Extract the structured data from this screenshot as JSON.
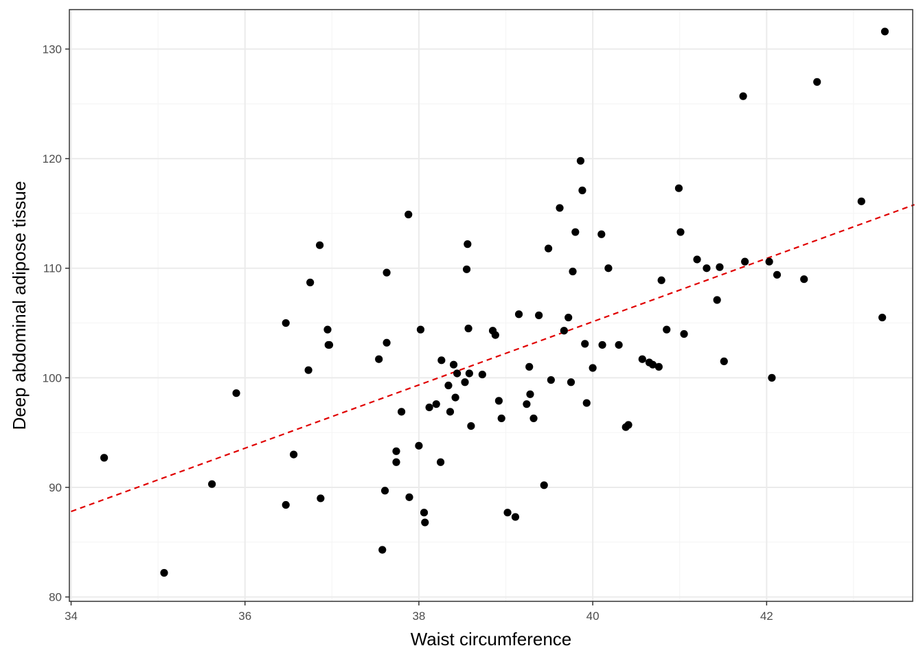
{
  "chart_data": {
    "type": "scatter",
    "xlabel": "Waist circumference",
    "ylabel": "Deep abdominal adipose tissue",
    "xlim": [
      33.98,
      43.68
    ],
    "ylim": [
      79.6,
      133.6
    ],
    "x_ticks": [
      "34",
      "36",
      "38",
      "40",
      "42"
    ],
    "y_ticks": [
      "80",
      "90",
      "100",
      "110",
      "120",
      "130"
    ],
    "grid": true,
    "point_color": "#000000",
    "trend_line": {
      "x": [
        34.0,
        43.7
      ],
      "y": [
        87.8,
        115.8
      ],
      "color": "#e00000",
      "style": "dashed"
    },
    "points": [
      [
        34.38,
        92.7
      ],
      [
        35.07,
        82.2
      ],
      [
        35.62,
        90.3
      ],
      [
        35.9,
        98.6
      ],
      [
        36.47,
        105.0
      ],
      [
        36.47,
        88.4
      ],
      [
        36.56,
        93.0
      ],
      [
        36.73,
        100.7
      ],
      [
        36.75,
        108.7
      ],
      [
        36.86,
        112.1
      ],
      [
        36.87,
        89.0
      ],
      [
        36.95,
        104.4
      ],
      [
        36.96,
        103.0
      ],
      [
        36.97,
        103.0
      ],
      [
        37.54,
        101.7
      ],
      [
        37.58,
        84.3
      ],
      [
        37.61,
        89.7
      ],
      [
        37.63,
        109.6
      ],
      [
        37.63,
        103.2
      ],
      [
        37.74,
        93.3
      ],
      [
        37.74,
        92.3
      ],
      [
        37.8,
        96.9
      ],
      [
        37.88,
        114.9
      ],
      [
        37.89,
        89.1
      ],
      [
        38.0,
        93.8
      ],
      [
        38.02,
        104.4
      ],
      [
        38.06,
        87.7
      ],
      [
        38.07,
        86.8
      ],
      [
        38.12,
        97.3
      ],
      [
        38.2,
        97.6
      ],
      [
        38.25,
        92.3
      ],
      [
        38.26,
        101.6
      ],
      [
        38.34,
        99.3
      ],
      [
        38.36,
        96.9
      ],
      [
        38.4,
        101.2
      ],
      [
        38.42,
        98.2
      ],
      [
        38.44,
        100.4
      ],
      [
        38.53,
        99.6
      ],
      [
        38.55,
        109.9
      ],
      [
        38.56,
        112.2
      ],
      [
        38.57,
        104.5
      ],
      [
        38.58,
        100.4
      ],
      [
        38.6,
        95.6
      ],
      [
        38.73,
        100.3
      ],
      [
        38.85,
        104.3
      ],
      [
        38.88,
        103.9
      ],
      [
        38.92,
        97.9
      ],
      [
        38.95,
        96.3
      ],
      [
        39.02,
        87.7
      ],
      [
        39.11,
        87.3
      ],
      [
        39.15,
        105.8
      ],
      [
        39.24,
        97.6
      ],
      [
        39.27,
        101.0
      ],
      [
        39.28,
        98.5
      ],
      [
        39.32,
        96.3
      ],
      [
        39.38,
        105.7
      ],
      [
        39.44,
        90.2
      ],
      [
        39.49,
        111.8
      ],
      [
        39.52,
        99.8
      ],
      [
        39.62,
        115.5
      ],
      [
        39.67,
        104.3
      ],
      [
        39.72,
        105.5
      ],
      [
        39.75,
        99.6
      ],
      [
        39.77,
        109.7
      ],
      [
        39.8,
        113.3
      ],
      [
        39.86,
        119.8
      ],
      [
        39.88,
        117.1
      ],
      [
        39.91,
        103.1
      ],
      [
        39.93,
        97.7
      ],
      [
        40.0,
        100.9
      ],
      [
        40.1,
        113.1
      ],
      [
        40.11,
        103.0
      ],
      [
        40.18,
        110.0
      ],
      [
        40.3,
        103.0
      ],
      [
        40.38,
        95.5
      ],
      [
        40.41,
        95.7
      ],
      [
        40.57,
        101.7
      ],
      [
        40.65,
        101.4
      ],
      [
        40.69,
        101.2
      ],
      [
        40.76,
        101.0
      ],
      [
        40.79,
        108.9
      ],
      [
        40.85,
        104.4
      ],
      [
        40.99,
        117.3
      ],
      [
        41.01,
        113.3
      ],
      [
        41.05,
        104.0
      ],
      [
        41.2,
        110.8
      ],
      [
        41.31,
        110.0
      ],
      [
        41.43,
        107.1
      ],
      [
        41.46,
        110.1
      ],
      [
        41.51,
        101.5
      ],
      [
        41.73,
        125.7
      ],
      [
        41.75,
        110.6
      ],
      [
        42.03,
        110.6
      ],
      [
        42.06,
        100.0
      ],
      [
        42.12,
        109.4
      ],
      [
        42.43,
        109.0
      ],
      [
        42.58,
        127.0
      ],
      [
        43.09,
        116.1
      ],
      [
        43.33,
        105.5
      ],
      [
        43.36,
        131.6
      ]
    ]
  }
}
